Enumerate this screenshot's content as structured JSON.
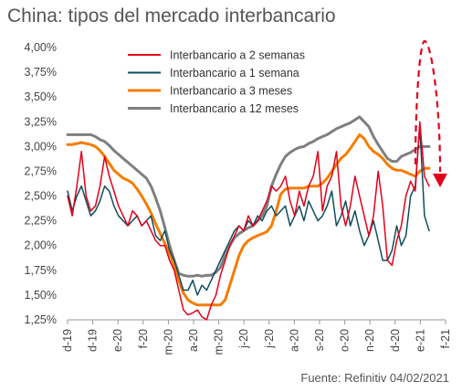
{
  "chart_data": {
    "type": "line",
    "title": "China: tipos del mercado interbancario",
    "source": "Fuente: Refinitiv 04/02/2021",
    "y_ticks": [
      "4,00%",
      "3,75%",
      "3,50%",
      "3,25%",
      "3,00%",
      "2,75%",
      "2,50%",
      "2,25%",
      "2,00%",
      "1,75%",
      "1,50%",
      "1,25%"
    ],
    "ylim": [
      1.25,
      4.0
    ],
    "x_ticks": [
      "d-19",
      "d-19",
      "e-20",
      "f-20",
      "m-20",
      "a-20",
      "m-20",
      "j-20",
      "j-20",
      "a-20",
      "s-20",
      "o-20",
      "n-20",
      "d-20",
      "e-21",
      "f-21"
    ],
    "legend": [
      "Interbancario a 2 semanas",
      "Interbancario a 1 semana",
      "Interbancario a 3 meses",
      "Interbancario a 12 meses"
    ],
    "series": [
      {
        "name": "Interbancario a 2 semanas",
        "color": "#e2001a",
        "values": [
          2.5,
          2.3,
          2.6,
          2.95,
          2.5,
          2.35,
          2.4,
          2.6,
          2.9,
          2.7,
          2.55,
          2.4,
          2.3,
          2.2,
          2.35,
          2.3,
          2.2,
          2.25,
          2.15,
          2.05,
          2.0,
          2.0,
          1.85,
          1.75,
          1.55,
          1.35,
          1.3,
          1.32,
          1.35,
          1.28,
          1.25,
          1.4,
          1.5,
          1.7,
          1.85,
          2.0,
          2.1,
          2.2,
          2.15,
          2.3,
          2.2,
          2.25,
          2.35,
          2.45,
          2.6,
          2.55,
          2.6,
          2.7,
          2.45,
          2.3,
          2.55,
          2.4,
          2.6,
          2.7,
          2.95,
          2.35,
          2.6,
          2.7,
          2.95,
          2.4,
          2.2,
          2.4,
          2.7,
          2.5,
          2.3,
          2.1,
          2.3,
          2.75,
          2.4,
          1.85,
          1.8,
          2.05,
          2.2,
          2.5,
          2.65,
          2.55,
          3.25,
          2.7,
          2.6
        ]
      },
      {
        "name": "Interbancario a 1 semana",
        "color": "#0f4e5c",
        "values": [
          2.55,
          2.35,
          2.5,
          2.6,
          2.45,
          2.3,
          2.35,
          2.45,
          2.6,
          2.55,
          2.4,
          2.3,
          2.25,
          2.2,
          2.25,
          2.3,
          2.2,
          2.25,
          2.3,
          2.1,
          2.05,
          2.15,
          1.95,
          1.85,
          1.7,
          1.55,
          1.55,
          1.65,
          1.5,
          1.6,
          1.55,
          1.65,
          1.75,
          1.85,
          1.95,
          2.05,
          2.15,
          2.2,
          2.15,
          2.25,
          2.2,
          2.3,
          2.25,
          2.35,
          2.4,
          2.3,
          2.35,
          2.4,
          2.2,
          2.3,
          2.4,
          2.25,
          2.45,
          2.35,
          2.25,
          2.3,
          2.4,
          2.55,
          2.2,
          2.3,
          2.45,
          2.2,
          2.35,
          2.15,
          2.0,
          2.1,
          2.25,
          2.05,
          1.85,
          1.85,
          1.95,
          2.2,
          2.0,
          2.1,
          2.5,
          2.6,
          3.2,
          2.3,
          2.15
        ]
      },
      {
        "name": "Interbancario a 3 meses",
        "color": "#f57c00",
        "values": [
          3.02,
          3.02,
          3.03,
          3.04,
          3.03,
          3.02,
          3.0,
          2.96,
          2.9,
          2.83,
          2.76,
          2.72,
          2.68,
          2.66,
          2.63,
          2.57,
          2.5,
          2.42,
          2.33,
          2.22,
          2.12,
          2.02,
          1.92,
          1.8,
          1.65,
          1.52,
          1.45,
          1.42,
          1.4,
          1.4,
          1.4,
          1.4,
          1.4,
          1.4,
          1.45,
          1.6,
          1.75,
          1.9,
          2.0,
          2.05,
          2.08,
          2.1,
          2.12,
          2.14,
          2.2,
          2.35,
          2.52,
          2.57,
          2.58,
          2.58,
          2.58,
          2.58,
          2.6,
          2.6,
          2.6,
          2.63,
          2.68,
          2.75,
          2.82,
          2.88,
          2.92,
          2.98,
          3.05,
          3.12,
          3.08,
          3.0,
          2.95,
          2.92,
          2.88,
          2.82,
          2.78,
          2.76,
          2.76,
          2.74,
          2.72,
          2.7,
          2.75,
          2.78,
          2.78
        ]
      },
      {
        "name": "Interbancario a 12 meses",
        "color": "#7f7f7f",
        "values": [
          3.12,
          3.12,
          3.12,
          3.12,
          3.12,
          3.12,
          3.1,
          3.07,
          3.05,
          3.01,
          2.96,
          2.92,
          2.88,
          2.84,
          2.8,
          2.76,
          2.72,
          2.68,
          2.6,
          2.48,
          2.35,
          2.18,
          2.0,
          1.85,
          1.72,
          1.7,
          1.69,
          1.69,
          1.7,
          1.69,
          1.7,
          1.7,
          1.73,
          1.78,
          1.9,
          2.0,
          2.08,
          2.12,
          2.15,
          2.18,
          2.2,
          2.25,
          2.3,
          2.4,
          2.6,
          2.72,
          2.82,
          2.9,
          2.94,
          2.97,
          2.99,
          3.0,
          3.03,
          3.05,
          3.08,
          3.1,
          3.12,
          3.15,
          3.18,
          3.2,
          3.22,
          3.24,
          3.27,
          3.3,
          3.25,
          3.2,
          3.1,
          3.02,
          2.95,
          2.88,
          2.85,
          2.85,
          2.9,
          2.92,
          2.94,
          2.97,
          3.0,
          3.0,
          3.0
        ]
      }
    ],
    "annotation": {
      "type": "dashed-ellipse-arrow",
      "color": "#e2001a"
    }
  }
}
